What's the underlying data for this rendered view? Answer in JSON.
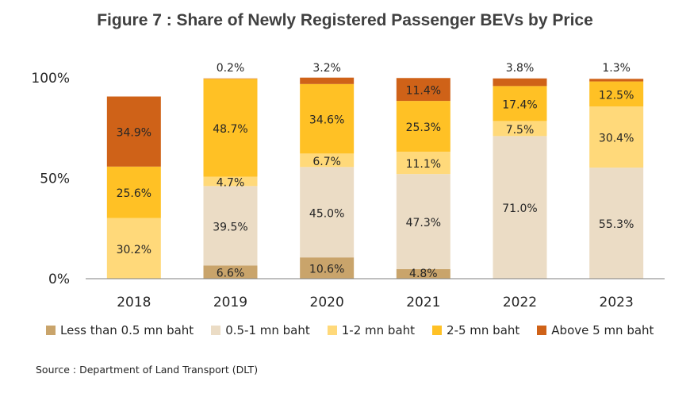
{
  "title": "Figure 7 : Share of Newly Registered Passenger BEVs by Price",
  "source": "Source : Department of Land Transport (DLT)",
  "chart_data": {
    "type": "bar",
    "stacked": true,
    "categories": [
      "2018",
      "2019",
      "2020",
      "2021",
      "2022",
      "2023"
    ],
    "yticks": [
      "0%",
      "50%",
      "100%"
    ],
    "ylim": [
      0,
      100
    ],
    "grid": false,
    "legend_position": "bottom",
    "series": [
      {
        "name": "Less than 0.5 mn baht",
        "color": "#c9a46b",
        "values": [
          0,
          6.6,
          10.6,
          4.8,
          0,
          0
        ],
        "labels": [
          "",
          "6.6%",
          "10.6%",
          "4.8%",
          "",
          ""
        ]
      },
      {
        "name": "0.5-1 mn baht",
        "color": "#ebdcc5",
        "values": [
          0,
          39.5,
          45.0,
          47.3,
          71.0,
          55.3
        ],
        "labels": [
          "",
          "39.5%",
          "45.0%",
          "47.3%",
          "71.0%",
          "55.3%"
        ]
      },
      {
        "name": "1-2 mn baht",
        "color": "#ffd97a",
        "values": [
          30.2,
          4.7,
          6.7,
          11.1,
          7.5,
          30.4
        ],
        "labels": [
          "30.2%",
          "4.7%",
          "6.7%",
          "11.1%",
          "7.5%",
          "30.4%"
        ]
      },
      {
        "name": "2-5 mn baht",
        "color": "#ffc125",
        "values": [
          25.6,
          48.7,
          34.6,
          25.3,
          17.4,
          12.5
        ],
        "labels": [
          "25.6%",
          "48.7%",
          "34.6%",
          "25.3%",
          "17.4%",
          "12.5%"
        ]
      },
      {
        "name": "Above 5 mn baht",
        "color": "#cf6218",
        "values": [
          34.9,
          0.2,
          3.2,
          11.4,
          3.8,
          1.3
        ],
        "labels": [
          "34.9%",
          "0.2%",
          "3.2%",
          "11.4%",
          "3.8%",
          "1.3%"
        ]
      }
    ]
  }
}
